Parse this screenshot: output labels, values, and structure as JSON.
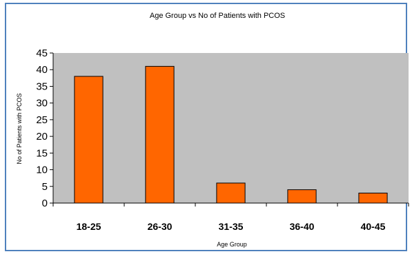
{
  "chart_data": {
    "type": "bar",
    "title": "Age Group vs No of Patients with PCOS",
    "xlabel": "Age Group",
    "ylabel": "No of Patients with PCOS",
    "categories": [
      "18-25",
      "26-30",
      "31-35",
      "36-40",
      "40-45"
    ],
    "values": [
      38,
      41,
      6,
      4,
      3
    ],
    "ylim": [
      0,
      45
    ],
    "yticks": [
      0,
      5,
      10,
      15,
      20,
      25,
      30,
      35,
      40,
      45
    ],
    "grid": false,
    "legend": "none",
    "colors": {
      "bar": "#ff6600",
      "bar_edge": "#000000",
      "plot_background": "#c0c0c0",
      "frame_border": "#4f81bd"
    }
  }
}
